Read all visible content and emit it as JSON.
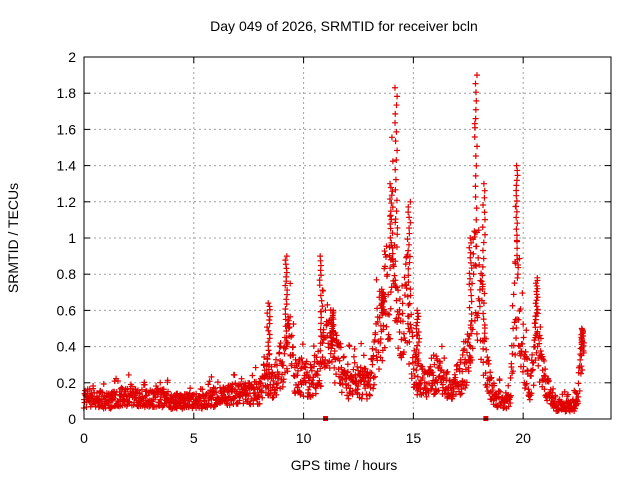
{
  "chart_data": {
    "type": "scatter",
    "title": "Day 049 of 2026, SRMTID for receiver bcln",
    "xlabel": "GPS time / hours",
    "ylabel": "SRMTID / TECUs",
    "xlim": [
      0,
      24
    ],
    "ylim": [
      0,
      2
    ],
    "xticks": [
      0,
      5,
      10,
      15,
      20
    ],
    "xtick_labels": [
      "0",
      "5",
      "10",
      "15",
      "20"
    ],
    "yticks": [
      0,
      0.2,
      0.4,
      0.6,
      0.8,
      1,
      1.2,
      1.4,
      1.6,
      1.8,
      2
    ],
    "ytick_labels": [
      "0",
      "0.2",
      "0.4",
      "0.6",
      "0.8",
      "1",
      "1.2",
      "1.4",
      "1.6",
      "1.8",
      "2"
    ],
    "grid": true,
    "marker": "plus",
    "series": [
      {
        "name": "SRMTID",
        "color": "#e00000",
        "profile": {
          "x": [
            0,
            0.5,
            1,
            1.5,
            2,
            2.5,
            3,
            3.5,
            4,
            4.5,
            5,
            5.5,
            6,
            6.5,
            7,
            7.5,
            8,
            8.3,
            8.6,
            9,
            9.3,
            9.6,
            10,
            10.5,
            10.8,
            11.2,
            11.6,
            12,
            12.5,
            13,
            13.4,
            13.8,
            14.1,
            14.4,
            14.7,
            15,
            15.3,
            15.6,
            16,
            16.4,
            16.8,
            17.2,
            17.6,
            17.8,
            18,
            18.3,
            18.6,
            19,
            19.4,
            19.7,
            20,
            20.3,
            20.6,
            21,
            21.5,
            22,
            22.4,
            22.7
          ],
          "y": [
            0.11,
            0.12,
            0.1,
            0.11,
            0.13,
            0.12,
            0.11,
            0.12,
            0.1,
            0.1,
            0.1,
            0.1,
            0.12,
            0.13,
            0.14,
            0.14,
            0.15,
            0.25,
            0.2,
            0.3,
            0.45,
            0.25,
            0.22,
            0.22,
            0.32,
            0.42,
            0.3,
            0.2,
            0.2,
            0.2,
            0.45,
            0.7,
            0.9,
            0.5,
            0.7,
            0.3,
            0.2,
            0.22,
            0.25,
            0.2,
            0.15,
            0.25,
            0.4,
            0.9,
            0.7,
            0.3,
            0.14,
            0.1,
            0.1,
            0.8,
            0.35,
            0.15,
            0.45,
            0.2,
            0.08,
            0.07,
            0.08,
            0.35
          ]
        },
        "spikes": [
          {
            "x": 8.4,
            "y": 0.64
          },
          {
            "x": 9.2,
            "y": 0.9
          },
          {
            "x": 10.8,
            "y": 0.9
          },
          {
            "x": 11.3,
            "y": 0.6
          },
          {
            "x": 13.6,
            "y": 0.7
          },
          {
            "x": 14.0,
            "y": 1.3
          },
          {
            "x": 14.2,
            "y": 1.83
          },
          {
            "x": 14.8,
            "y": 1.2
          },
          {
            "x": 15.2,
            "y": 0.6
          },
          {
            "x": 17.6,
            "y": 1.0
          },
          {
            "x": 17.85,
            "y": 1.9
          },
          {
            "x": 18.2,
            "y": 1.3
          },
          {
            "x": 19.7,
            "y": 1.4
          },
          {
            "x": 20.6,
            "y": 0.78
          },
          {
            "x": 22.7,
            "y": 0.5
          }
        ],
        "low_points": [
          {
            "x": 11.0,
            "y": 0.0
          },
          {
            "x": 18.3,
            "y": 0.0
          }
        ]
      }
    ]
  }
}
